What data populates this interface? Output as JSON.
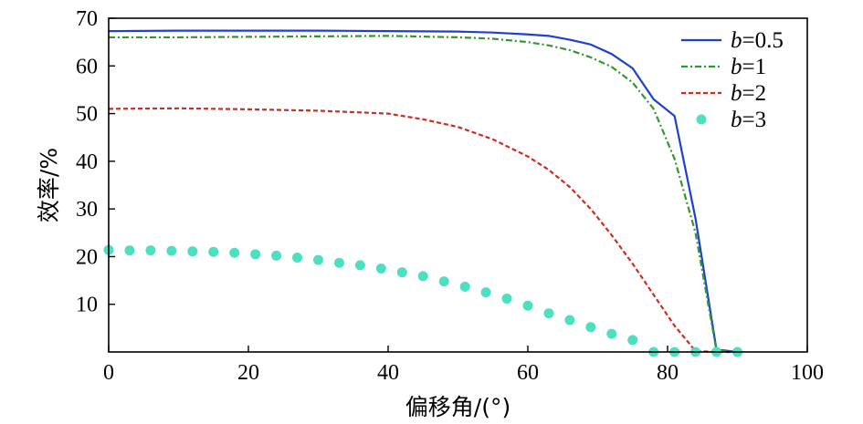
{
  "chart_data": {
    "type": "line",
    "xlabel": "偏移角/(°)",
    "ylabel": "效率/%",
    "xlim": [
      0,
      100
    ],
    "ylim": [
      0,
      70
    ],
    "x_ticks": [
      "0",
      "20",
      "40",
      "60",
      "80",
      "100"
    ],
    "y_ticks": [
      "10",
      "20",
      "30",
      "40",
      "50",
      "60",
      "70"
    ],
    "legend_position": "top-right",
    "series": [
      {
        "name": "b=0.5",
        "legend_var": "b",
        "legend_val": "=0.5",
        "style": "solid",
        "color": "#1f3fd0",
        "x": [
          0,
          10,
          20,
          30,
          40,
          50,
          55,
          60,
          63,
          66,
          69,
          72,
          75,
          78,
          81,
          84,
          87,
          90
        ],
        "y": [
          67.3,
          67.4,
          67.4,
          67.4,
          67.3,
          67.2,
          67.0,
          66.6,
          66.3,
          65.5,
          64.5,
          62.5,
          59.5,
          53.0,
          49.5,
          28.0,
          0.5,
          0.0
        ]
      },
      {
        "name": "b=1",
        "legend_var": "b",
        "legend_val": "=1",
        "style": "dashdot",
        "color": "#2e9a2e",
        "x": [
          0,
          10,
          20,
          30,
          40,
          50,
          55,
          60,
          63,
          66,
          69,
          72,
          75,
          78,
          81,
          84,
          87,
          90
        ],
        "y": [
          66.0,
          66.0,
          66.1,
          66.2,
          66.3,
          66.0,
          65.7,
          65.0,
          64.3,
          63.3,
          61.8,
          59.8,
          56.5,
          51.0,
          40.5,
          25.0,
          0.3,
          0.0
        ]
      },
      {
        "name": "b=2",
        "legend_var": "b",
        "legend_val": "=2",
        "style": "dashed",
        "color": "#d42a1c",
        "x": [
          0,
          10,
          20,
          30,
          40,
          45,
          50,
          55,
          60,
          63,
          66,
          69,
          72,
          75,
          78,
          81,
          84,
          87,
          90
        ],
        "y": [
          51.0,
          51.1,
          50.9,
          50.6,
          50.0,
          48.8,
          47.2,
          44.6,
          41.0,
          38.2,
          34.6,
          30.0,
          24.5,
          18.5,
          12.0,
          5.5,
          0.2,
          0.0,
          0.0
        ]
      },
      {
        "name": "b=3",
        "legend_var": "b",
        "legend_val": "=3",
        "style": "markers",
        "color": "#4de0c0",
        "x": [
          0,
          3,
          6,
          9,
          12,
          15,
          18,
          21,
          24,
          27,
          30,
          33,
          36,
          39,
          42,
          45,
          48,
          51,
          54,
          57,
          60,
          63,
          66,
          69,
          72,
          75,
          78,
          81,
          84,
          87,
          90
        ],
        "y": [
          21.4,
          21.3,
          21.3,
          21.2,
          21.1,
          21.0,
          20.8,
          20.5,
          20.2,
          19.8,
          19.3,
          18.7,
          18.2,
          17.5,
          16.7,
          15.9,
          14.8,
          13.7,
          12.5,
          11.2,
          9.7,
          8.1,
          6.7,
          5.2,
          3.8,
          2.5,
          0.0,
          0.0,
          0.0,
          0.0,
          0.0
        ]
      }
    ]
  }
}
